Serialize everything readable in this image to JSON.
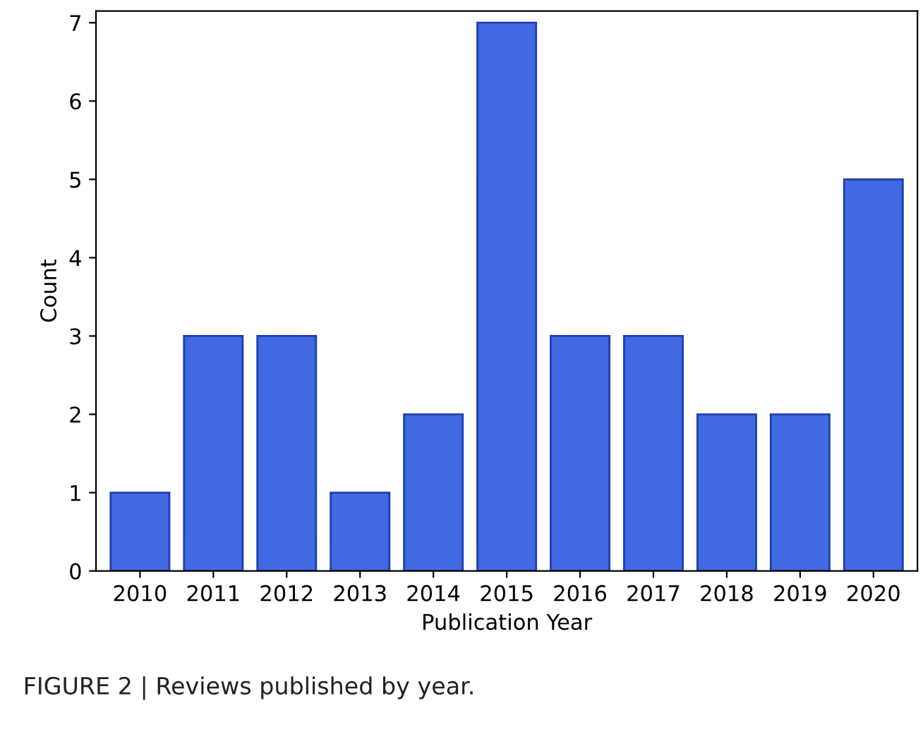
{
  "chart_data": {
    "type": "bar",
    "xlabel": "Publication Year",
    "ylabel": "Count",
    "categories": [
      "2010",
      "2011",
      "2012",
      "2013",
      "2014",
      "2015",
      "2016",
      "2017",
      "2018",
      "2019",
      "2020"
    ],
    "values": [
      1,
      3,
      3,
      1,
      2,
      7,
      3,
      3,
      2,
      2,
      5
    ],
    "color": "#4169e1",
    "ylim": [
      0,
      7.15
    ],
    "yticks": [
      0,
      1,
      2,
      3,
      4,
      5,
      6,
      7
    ],
    "grid": false,
    "annotations": [
      "FIGURE 2 | Reviews published by year."
    ]
  }
}
